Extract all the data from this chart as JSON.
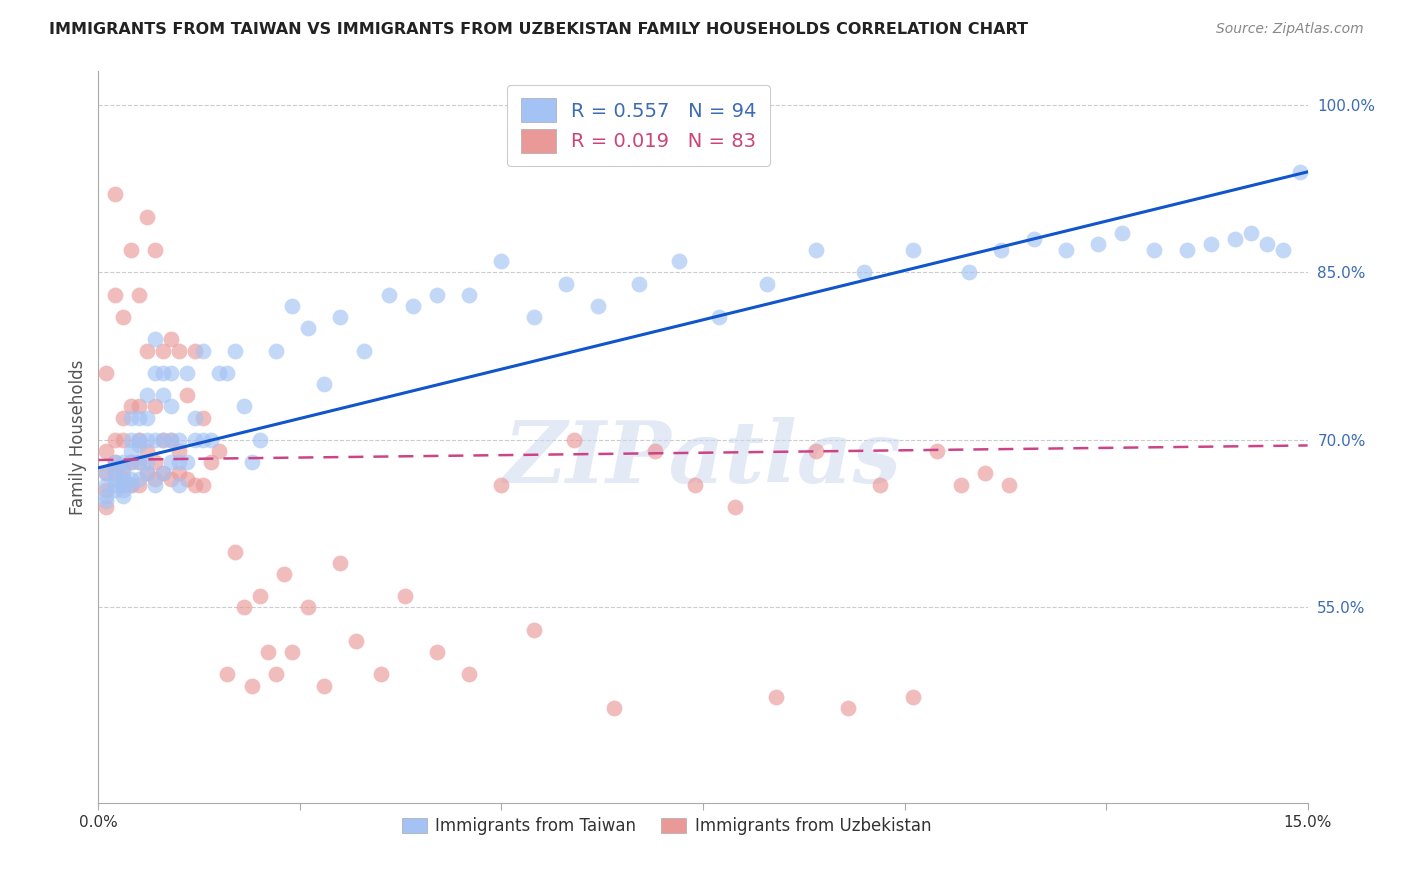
{
  "title": "IMMIGRANTS FROM TAIWAN VS IMMIGRANTS FROM UZBEKISTAN FAMILY HOUSEHOLDS CORRELATION CHART",
  "source": "Source: ZipAtlas.com",
  "ylabel": "Family Households",
  "ytick_values": [
    0.55,
    0.7,
    0.85,
    1.0
  ],
  "xlim": [
    0.0,
    0.15
  ],
  "ylim": [
    0.375,
    1.03
  ],
  "taiwan_color": "#a4c2f4",
  "uzbekistan_color": "#ea9999",
  "taiwan_line_color": "#1155cc",
  "uzbekistan_line_color": "#cc4488",
  "watermark": "ZIPatlas",
  "taiwan_R": 0.557,
  "taiwan_N": 94,
  "uzbekistan_R": 0.019,
  "uzbekistan_N": 83,
  "tw_x": [
    0.001,
    0.001,
    0.001,
    0.001,
    0.002,
    0.002,
    0.002,
    0.002,
    0.002,
    0.003,
    0.003,
    0.003,
    0.003,
    0.003,
    0.003,
    0.004,
    0.004,
    0.004,
    0.004,
    0.004,
    0.004,
    0.005,
    0.005,
    0.005,
    0.005,
    0.005,
    0.006,
    0.006,
    0.006,
    0.006,
    0.006,
    0.007,
    0.007,
    0.007,
    0.007,
    0.008,
    0.008,
    0.008,
    0.008,
    0.009,
    0.009,
    0.009,
    0.009,
    0.01,
    0.01,
    0.01,
    0.011,
    0.011,
    0.012,
    0.012,
    0.013,
    0.013,
    0.014,
    0.015,
    0.016,
    0.017,
    0.018,
    0.019,
    0.02,
    0.022,
    0.024,
    0.026,
    0.028,
    0.03,
    0.033,
    0.036,
    0.039,
    0.042,
    0.046,
    0.05,
    0.054,
    0.058,
    0.062,
    0.067,
    0.072,
    0.077,
    0.083,
    0.089,
    0.095,
    0.101,
    0.108,
    0.112,
    0.116,
    0.12,
    0.124,
    0.127,
    0.131,
    0.135,
    0.138,
    0.141,
    0.143,
    0.145,
    0.147,
    0.149
  ],
  "tw_y": [
    0.66,
    0.67,
    0.65,
    0.645,
    0.66,
    0.675,
    0.655,
    0.68,
    0.665,
    0.655,
    0.66,
    0.67,
    0.68,
    0.665,
    0.65,
    0.66,
    0.665,
    0.68,
    0.7,
    0.72,
    0.69,
    0.665,
    0.68,
    0.695,
    0.72,
    0.7,
    0.67,
    0.68,
    0.72,
    0.74,
    0.7,
    0.66,
    0.7,
    0.76,
    0.79,
    0.67,
    0.7,
    0.74,
    0.76,
    0.68,
    0.7,
    0.73,
    0.76,
    0.7,
    0.68,
    0.66,
    0.68,
    0.76,
    0.72,
    0.7,
    0.7,
    0.78,
    0.7,
    0.76,
    0.76,
    0.78,
    0.73,
    0.68,
    0.7,
    0.78,
    0.82,
    0.8,
    0.75,
    0.81,
    0.78,
    0.83,
    0.82,
    0.83,
    0.83,
    0.86,
    0.81,
    0.84,
    0.82,
    0.84,
    0.86,
    0.81,
    0.84,
    0.87,
    0.85,
    0.87,
    0.85,
    0.87,
    0.88,
    0.87,
    0.875,
    0.885,
    0.87,
    0.87,
    0.875,
    0.88,
    0.885,
    0.875,
    0.87,
    0.94
  ],
  "uz_x": [
    0.001,
    0.001,
    0.001,
    0.001,
    0.001,
    0.002,
    0.002,
    0.002,
    0.002,
    0.002,
    0.003,
    0.003,
    0.003,
    0.003,
    0.003,
    0.003,
    0.004,
    0.004,
    0.004,
    0.004,
    0.005,
    0.005,
    0.005,
    0.005,
    0.005,
    0.006,
    0.006,
    0.006,
    0.006,
    0.007,
    0.007,
    0.007,
    0.007,
    0.008,
    0.008,
    0.008,
    0.009,
    0.009,
    0.009,
    0.01,
    0.01,
    0.01,
    0.011,
    0.011,
    0.012,
    0.012,
    0.013,
    0.013,
    0.014,
    0.015,
    0.016,
    0.017,
    0.018,
    0.019,
    0.02,
    0.021,
    0.022,
    0.023,
    0.024,
    0.026,
    0.028,
    0.03,
    0.032,
    0.035,
    0.038,
    0.042,
    0.046,
    0.05,
    0.054,
    0.059,
    0.064,
    0.069,
    0.074,
    0.079,
    0.084,
    0.089,
    0.093,
    0.097,
    0.101,
    0.104,
    0.107,
    0.11,
    0.113
  ],
  "uz_y": [
    0.67,
    0.655,
    0.64,
    0.69,
    0.76,
    0.67,
    0.68,
    0.7,
    0.83,
    0.92,
    0.66,
    0.665,
    0.675,
    0.7,
    0.72,
    0.81,
    0.66,
    0.68,
    0.73,
    0.87,
    0.66,
    0.68,
    0.7,
    0.73,
    0.83,
    0.67,
    0.69,
    0.78,
    0.9,
    0.665,
    0.68,
    0.73,
    0.87,
    0.67,
    0.7,
    0.78,
    0.665,
    0.7,
    0.79,
    0.67,
    0.69,
    0.78,
    0.665,
    0.74,
    0.66,
    0.78,
    0.66,
    0.72,
    0.68,
    0.69,
    0.49,
    0.6,
    0.55,
    0.48,
    0.56,
    0.51,
    0.49,
    0.58,
    0.51,
    0.55,
    0.48,
    0.59,
    0.52,
    0.49,
    0.56,
    0.51,
    0.49,
    0.66,
    0.53,
    0.7,
    0.46,
    0.69,
    0.66,
    0.64,
    0.47,
    0.69,
    0.46,
    0.66,
    0.47,
    0.69,
    0.66,
    0.67,
    0.66
  ]
}
